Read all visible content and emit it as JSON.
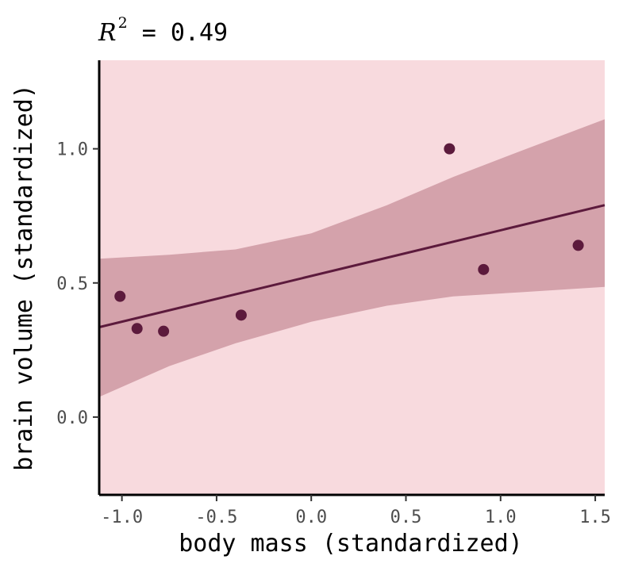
{
  "chart_data": {
    "type": "scatter",
    "title": {
      "prefix": "R",
      "superscript": "2",
      "rest": " = 0.49"
    },
    "xlabel": "body mass (standardized)",
    "ylabel": "brain volume (standardized)",
    "xlim": [
      -1.12,
      1.55
    ],
    "ylim": [
      -0.29,
      1.33
    ],
    "x_ticks": [
      -1.0,
      -0.5,
      0.0,
      0.5,
      1.0,
      1.5
    ],
    "x_tick_labels": [
      "-1.0",
      "-0.5",
      "0.0",
      "0.5",
      "1.0",
      "1.5"
    ],
    "y_ticks": [
      0.0,
      0.5,
      1.0
    ],
    "y_tick_labels": [
      "0.0",
      "0.5",
      "1.0"
    ],
    "grid": false,
    "points": [
      {
        "x": -1.01,
        "y": 0.45
      },
      {
        "x": -0.92,
        "y": 0.33
      },
      {
        "x": -0.78,
        "y": 0.32
      },
      {
        "x": -0.37,
        "y": 0.38
      },
      {
        "x": 0.73,
        "y": 1.0
      },
      {
        "x": 0.91,
        "y": 0.55
      },
      {
        "x": 1.41,
        "y": 0.64
      }
    ],
    "fit_line": {
      "x": [
        -1.12,
        1.55
      ],
      "y": [
        0.335,
        0.79
      ]
    },
    "confidence_band": {
      "x": [
        -1.12,
        -0.75,
        -0.4,
        0.0,
        0.4,
        0.75,
        1.1,
        1.55
      ],
      "lower": [
        0.075,
        0.19,
        0.275,
        0.355,
        0.415,
        0.45,
        0.465,
        0.485
      ],
      "upper": [
        0.59,
        0.605,
        0.625,
        0.685,
        0.79,
        0.895,
        0.99,
        1.11
      ]
    },
    "colors": {
      "background_band": "#f8dade",
      "confidence_band": "#d4a2ab",
      "line": "#5c1a3c",
      "points": "#5c1a3c",
      "axis": "#000000"
    }
  }
}
